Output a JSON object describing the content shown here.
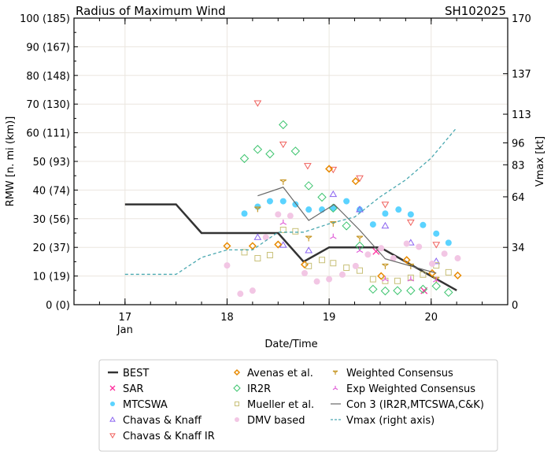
{
  "chart_data": {
    "type": "scatter",
    "title": "Radius of Maximum Wind",
    "title_right": "SH102025",
    "xlabel": "Date/Time",
    "ylabel": "RMW [n. mi (km)]",
    "ylabel_right": "Vmax [kt]",
    "xlim": [
      16.5,
      20.75
    ],
    "ylim": [
      0,
      100
    ],
    "ylim_right": [
      0,
      170
    ],
    "grid": true,
    "legend_placement": "bottom",
    "x_ticks": [
      {
        "v": 17,
        "label": "17",
        "sub": "Jan"
      },
      {
        "v": 18,
        "label": "18",
        "sub": ""
      },
      {
        "v": 19,
        "label": "19",
        "sub": ""
      },
      {
        "v": 20,
        "label": "20",
        "sub": ""
      }
    ],
    "y_ticks": [
      {
        "v": 0,
        "label": "0 (0)"
      },
      {
        "v": 10,
        "label": "10 (19)"
      },
      {
        "v": 20,
        "label": "20 (37)"
      },
      {
        "v": 30,
        "label": "30 (56)"
      },
      {
        "v": 40,
        "label": "40 (74)"
      },
      {
        "v": 50,
        "label": "50 (93)"
      },
      {
        "v": 60,
        "label": "60 (111)"
      },
      {
        "v": 70,
        "label": "70 (130)"
      },
      {
        "v": 80,
        "label": "80 (148)"
      },
      {
        "v": 90,
        "label": "90 (167)"
      },
      {
        "v": 100,
        "label": "100 (185)"
      }
    ],
    "y_ticks_right": [
      "0",
      "34",
      "64",
      "83",
      "96",
      "113",
      "137",
      "170"
    ],
    "series": [
      {
        "name": "BEST",
        "marker": "line",
        "color": "#333333",
        "points": [
          [
            17,
            35
          ],
          [
            17.5,
            35
          ],
          [
            17.75,
            25
          ],
          [
            18.5,
            25
          ],
          [
            18.75,
            15
          ],
          [
            19.0,
            20
          ],
          [
            19.5,
            20
          ],
          [
            20.25,
            5
          ]
        ]
      },
      {
        "name": "SAR",
        "marker": "x",
        "color": "#ff2c9c",
        "points": [
          [
            19.46,
            18.6
          ],
          [
            19.93,
            4.9
          ]
        ]
      },
      {
        "name": "MTCSWA",
        "marker": "dot",
        "color": "#5bd3ff",
        "points": [
          [
            18.17,
            31.8
          ],
          [
            18.3,
            34.2
          ],
          [
            18.42,
            36.1
          ],
          [
            18.55,
            36.1
          ],
          [
            18.67,
            35
          ],
          [
            18.8,
            33.2
          ],
          [
            18.93,
            33.2
          ],
          [
            19.04,
            33.7
          ],
          [
            19.17,
            36.1
          ],
          [
            19.3,
            33.2
          ],
          [
            19.43,
            28
          ],
          [
            19.55,
            31.8
          ],
          [
            19.68,
            33.2
          ],
          [
            19.8,
            31.5
          ],
          [
            19.92,
            27.8
          ],
          [
            20.05,
            24.8
          ],
          [
            20.17,
            21.6
          ]
        ]
      },
      {
        "name": "Chavas & Knaff",
        "marker": "tri-up",
        "color": "#8a63f0",
        "points": [
          [
            18.3,
            23.5
          ],
          [
            18.55,
            20.8
          ],
          [
            18.8,
            18.9
          ],
          [
            19.04,
            38.5
          ],
          [
            19.3,
            33.2
          ],
          [
            19.55,
            27.5
          ],
          [
            19.8,
            21.6
          ],
          [
            20.05,
            15.1
          ]
        ]
      },
      {
        "name": "Chavas & Knaff IR",
        "marker": "tri-down",
        "color": "#f0605c",
        "points": [
          [
            18.3,
            70.4
          ],
          [
            18.55,
            56
          ],
          [
            18.79,
            48.5
          ],
          [
            19.04,
            47.2
          ],
          [
            19.3,
            44.2
          ],
          [
            19.55,
            35
          ],
          [
            19.8,
            28.8
          ],
          [
            20.05,
            21
          ]
        ]
      },
      {
        "name": "Avenas et al.",
        "marker": "diamond-small",
        "color": "#e88a00",
        "points": [
          [
            18.0,
            20.5
          ],
          [
            18.25,
            20.5
          ],
          [
            18.5,
            21
          ],
          [
            18.76,
            14
          ],
          [
            19.0,
            47.4
          ],
          [
            19.26,
            43.1
          ],
          [
            19.51,
            10
          ],
          [
            19.76,
            15.6
          ],
          [
            20.01,
            11
          ],
          [
            20.26,
            10.2
          ]
        ]
      },
      {
        "name": "IR2R",
        "marker": "diamond",
        "color": "#3cc46e",
        "points": [
          [
            18.17,
            51
          ],
          [
            18.3,
            54.2
          ],
          [
            18.42,
            52.6
          ],
          [
            18.55,
            62.8
          ],
          [
            18.67,
            53.6
          ],
          [
            18.8,
            41.5
          ],
          [
            18.93,
            37.5
          ],
          [
            19.04,
            33.7
          ],
          [
            19.17,
            27.5
          ],
          [
            19.3,
            20.5
          ],
          [
            19.43,
            5.4
          ],
          [
            19.55,
            4.8
          ],
          [
            19.67,
            4.9
          ],
          [
            19.8,
            4.9
          ],
          [
            19.92,
            5.4
          ],
          [
            20.05,
            6.5
          ],
          [
            20.17,
            4.3
          ]
        ]
      },
      {
        "name": "Mueller et al.",
        "marker": "square",
        "color": "#c8c078",
        "points": [
          [
            18.17,
            18.3
          ],
          [
            18.3,
            16.2
          ],
          [
            18.42,
            17.3
          ],
          [
            18.55,
            26.1
          ],
          [
            18.67,
            25.6
          ],
          [
            18.8,
            13.5
          ],
          [
            18.93,
            15.6
          ],
          [
            19.04,
            14.5
          ],
          [
            19.17,
            12.9
          ],
          [
            19.3,
            11.9
          ],
          [
            19.43,
            8.9
          ],
          [
            19.55,
            8.3
          ],
          [
            19.67,
            8.3
          ],
          [
            19.8,
            9.4
          ],
          [
            19.92,
            10.5
          ],
          [
            20.05,
            13.7
          ],
          [
            20.17,
            11.3
          ]
        ]
      },
      {
        "name": "DMV based",
        "marker": "dot",
        "color": "#f2c6e4",
        "points": [
          [
            18.0,
            13.7
          ],
          [
            18.13,
            3.8
          ],
          [
            18.25,
            4.9
          ],
          [
            18.38,
            23.5
          ],
          [
            18.5,
            31.5
          ],
          [
            18.62,
            31
          ],
          [
            18.76,
            11
          ],
          [
            18.88,
            8.1
          ],
          [
            19.0,
            8.9
          ],
          [
            19.13,
            10.5
          ],
          [
            19.26,
            13.5
          ],
          [
            19.38,
            17.5
          ],
          [
            19.51,
            19.7
          ],
          [
            19.63,
            16.2
          ],
          [
            19.76,
            21.3
          ],
          [
            19.88,
            20.2
          ],
          [
            20.01,
            14.3
          ],
          [
            20.13,
            17.8
          ],
          [
            20.26,
            16.2
          ]
        ]
      },
      {
        "name": "Weighted Consensus",
        "marker": "y",
        "color": "#c89a2c",
        "points": [
          [
            18.3,
            33.4
          ],
          [
            18.55,
            42.9
          ],
          [
            18.8,
            23.2
          ],
          [
            19.04,
            28.3
          ],
          [
            19.3,
            23.2
          ],
          [
            19.55,
            13.5
          ],
          [
            19.8,
            13.5
          ],
          [
            20.05,
            8.9
          ]
        ]
      },
      {
        "name": "Exp Weighted Consensus",
        "marker": "y-inv",
        "color": "#e060d8",
        "points": [
          [
            18.55,
            28.6
          ],
          [
            19.04,
            23.7
          ],
          [
            19.3,
            18.9
          ],
          [
            19.55,
            8.9
          ],
          [
            19.8,
            8.9
          ],
          [
            20.05,
            8.6
          ]
        ]
      },
      {
        "name": "Con 3 (IR2R,MTCSWA,C&K)",
        "marker": "thin-line",
        "color": "#666666",
        "points": [
          [
            18.3,
            38
          ],
          [
            18.55,
            41
          ],
          [
            18.8,
            29.4
          ],
          [
            19.05,
            35
          ],
          [
            19.3,
            26
          ],
          [
            19.55,
            16
          ],
          [
            20.05,
            11
          ]
        ]
      },
      {
        "name": "Vmax (right axis)",
        "marker": "dash",
        "color": "#4aa8b0",
        "axis": "right",
        "points": [
          [
            17,
            18
          ],
          [
            17.5,
            18
          ],
          [
            17.75,
            28
          ],
          [
            18.0,
            32.5
          ],
          [
            18.25,
            32.5
          ],
          [
            18.5,
            43
          ],
          [
            18.75,
            43
          ],
          [
            19.0,
            48
          ],
          [
            19.25,
            52
          ],
          [
            19.5,
            64
          ],
          [
            19.75,
            74
          ],
          [
            20.0,
            87
          ],
          [
            20.25,
            105
          ]
        ]
      }
    ]
  }
}
